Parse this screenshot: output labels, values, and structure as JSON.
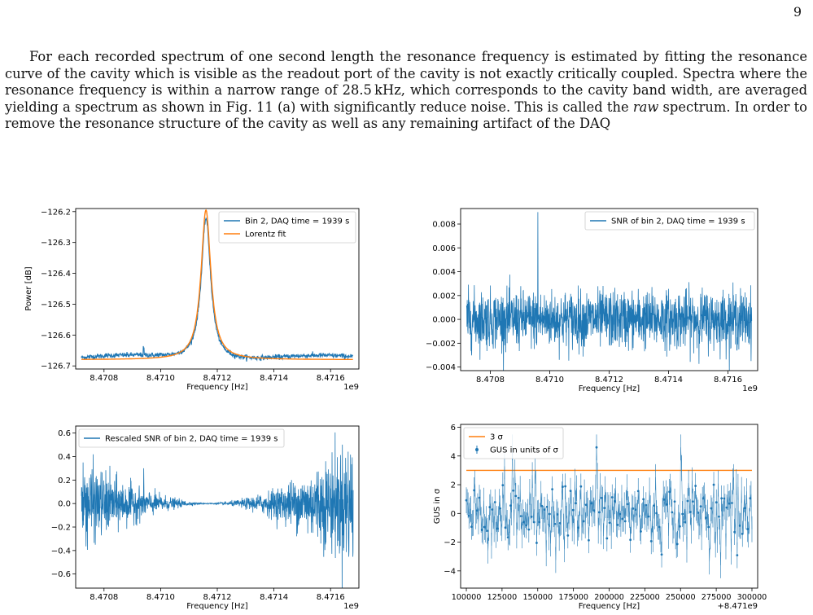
{
  "page_number": "9",
  "paragraph": {
    "before_raw": "For each recorded spectrum of one second length the resonance frequency is estimated by fitting the resonance curve of the cavity which is visible as the readout port of the cavity is not exactly critically coupled. Spectra where the resonance frequency is within a narrow range of 28.5 kHz, which corresponds to the cavity band width, are averaged yielding a spectrum as shown in Fig. 11 (a) with significantly reduce noise. This is called the ",
    "raw_word": "raw",
    "after_raw": " spectrum. In order to remove the resonance structure of the cavity as well as any remaining artifact of the DAQ"
  },
  "colors": {
    "blue": "#1f77b4",
    "orange": "#ff7f0e"
  },
  "chart_data": [
    {
      "type": "line",
      "xlabel": "Frequency [Hz]",
      "ylabel": "Power [dB]",
      "x_offset_label": "1e9",
      "xlim": [
        8.4707,
        8.4717
      ],
      "ylim": [
        -126.71,
        -126.19
      ],
      "x_ticks": [
        8.4708,
        8.471,
        8.4712,
        8.4714,
        8.4716
      ],
      "x_tick_labels": [
        "8.4708",
        "8.4710",
        "8.4712",
        "8.4714",
        "8.4716"
      ],
      "y_ticks": [
        -126.2,
        -126.3,
        -126.4,
        -126.5,
        -126.6,
        -126.7
      ],
      "y_tick_labels": [
        "−126.2",
        "−126.3",
        "−126.4",
        "−126.5",
        "−126.6",
        "−126.7"
      ],
      "legend_position": "top-right",
      "series": [
        {
          "name": "Bin 2, DAQ time = 1939 s",
          "color": "#1f77b4",
          "kind": "noisy-lorentz",
          "center": 8.47116,
          "fwhm": 4e-05,
          "baseline": -126.675,
          "peak": -126.215,
          "noise": 0.004
        },
        {
          "name": "Lorentz fit",
          "color": "#ff7f0e",
          "kind": "lorentz",
          "center": 8.47116,
          "fwhm": 4.2e-05,
          "baseline": -126.68,
          "peak": -126.195
        }
      ]
    },
    {
      "type": "line",
      "xlabel": "Frequency [Hz]",
      "ylabel": "",
      "x_offset_label": "1e9",
      "xlim": [
        8.4707,
        8.4717
      ],
      "ylim": [
        -0.0043,
        0.0093
      ],
      "x_ticks": [
        8.4708,
        8.471,
        8.4712,
        8.4714,
        8.4716
      ],
      "x_tick_labels": [
        "8.4708",
        "8.4710",
        "8.4712",
        "8.4714",
        "8.4716"
      ],
      "y_ticks": [
        0.008,
        0.006,
        0.004,
        0.002,
        0.0,
        -0.002,
        -0.004
      ],
      "y_tick_labels": [
        "0.008",
        "0.006",
        "0.004",
        "0.002",
        "0.000",
        "−0.002",
        "−0.004"
      ],
      "legend_position": "top-right",
      "series": [
        {
          "name": "SNR of bin 2, DAQ time = 1939 s",
          "color": "#1f77b4",
          "kind": "noise",
          "amplitude": 0.0017,
          "spike_x": 8.47096,
          "spike_y": 0.009
        }
      ]
    },
    {
      "type": "line",
      "xlabel": "Frequency [Hz]",
      "ylabel": "",
      "x_offset_label": "1e9",
      "xlim": [
        8.4707,
        8.4717
      ],
      "ylim": [
        -0.72,
        0.66
      ],
      "x_ticks": [
        8.4708,
        8.471,
        8.4712,
        8.4714,
        8.4716
      ],
      "x_tick_labels": [
        "8.4708",
        "8.4710",
        "8.4712",
        "8.4714",
        "8.4716"
      ],
      "y_ticks": [
        0.6,
        0.4,
        0.2,
        0.0,
        -0.2,
        -0.4,
        -0.6
      ],
      "y_tick_labels": [
        "0.6",
        "0.4",
        "0.2",
        "0.0",
        "−0.2",
        "−0.4",
        "−0.6"
      ],
      "legend_position": "top-left",
      "series": [
        {
          "name": "Rescaled SNR of bin 2, DAQ time = 1939 s",
          "color": "#1f77b4",
          "kind": "rescaled-noise",
          "center": 8.47116,
          "amplitude_left": 0.32,
          "amplitude_right": 0.5
        }
      ]
    },
    {
      "type": "scatter",
      "xlabel": "Frequency [Hz]",
      "ylabel": "GUS in σ",
      "x_offset_label": "+8.471e9",
      "xlim": [
        96000,
        304000
      ],
      "ylim": [
        -5.2,
        6.2
      ],
      "x_ticks": [
        100000,
        125000,
        150000,
        175000,
        200000,
        225000,
        250000,
        275000,
        300000
      ],
      "x_tick_labels": [
        "100000",
        "125000",
        "150000",
        "175000",
        "200000",
        "225000",
        "250000",
        "275000",
        "300000"
      ],
      "y_ticks": [
        6,
        4,
        2,
        0,
        -2,
        -4
      ],
      "y_tick_labels": [
        "6",
        "4",
        "2",
        "0",
        "−2",
        "−4"
      ],
      "legend_position": "top-left",
      "series": [
        {
          "name": "3 σ",
          "color": "#ff7f0e",
          "kind": "hline",
          "x_range": [
            100000,
            300000
          ],
          "y": 3
        },
        {
          "name": "GUS in units of σ",
          "color": "#1f77b4",
          "kind": "errorbar-points",
          "x_range": [
            100000,
            300000
          ],
          "count": 330,
          "error": 0.9
        }
      ]
    }
  ]
}
